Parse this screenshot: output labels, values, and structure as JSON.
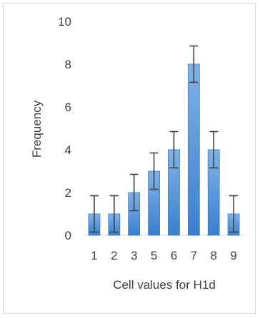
{
  "chart_data": {
    "type": "bar",
    "categories": [
      "1",
      "2",
      "3",
      "5",
      "6",
      "7",
      "8",
      "9"
    ],
    "values": [
      1,
      1,
      2,
      3,
      4,
      8,
      4,
      1
    ],
    "error": [
      0.85,
      0.85,
      0.85,
      0.85,
      0.85,
      0.85,
      0.85,
      0.85
    ],
    "xlabel": "Cell values for H1d",
    "ylabel": "Frequency",
    "ylim": [
      0,
      10
    ],
    "yticks": [
      "0",
      "2",
      "4",
      "6",
      "8",
      "10"
    ],
    "grid": false,
    "legend": "none",
    "bar_color_top": "#7fb2e6",
    "bar_color_bottom": "#3a7fcf",
    "error_bar_color": "#404040"
  }
}
